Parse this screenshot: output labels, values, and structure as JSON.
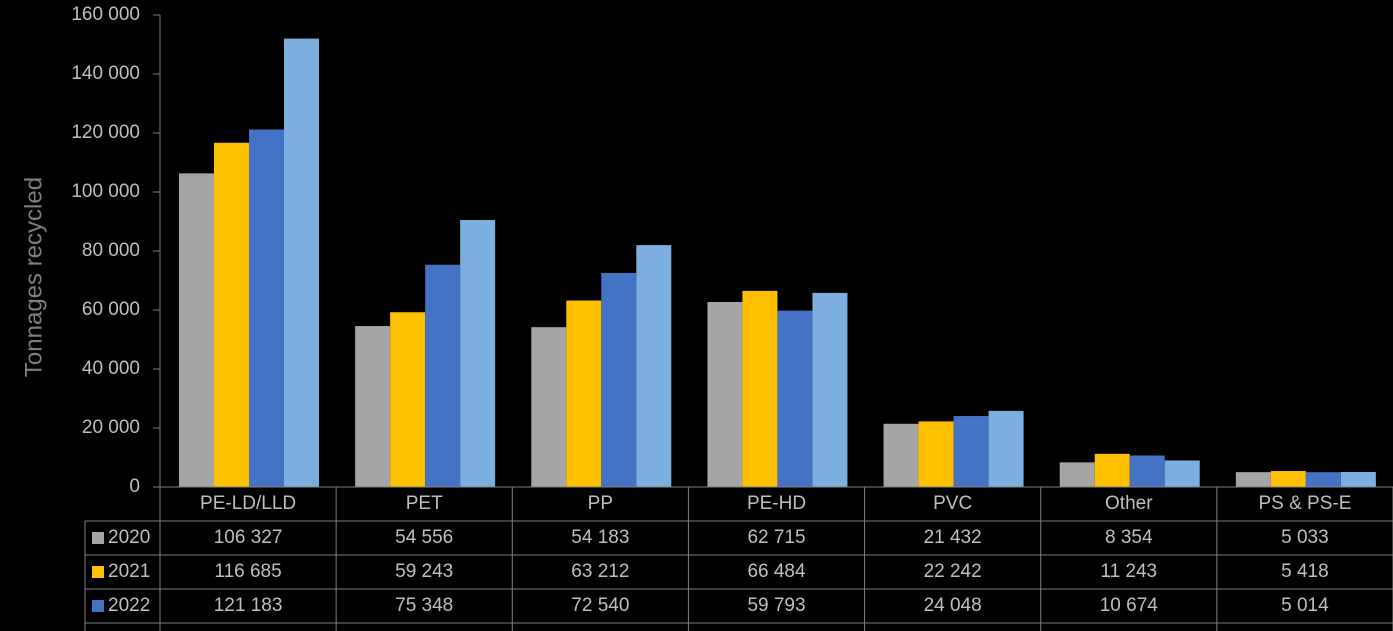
{
  "chart_data": {
    "type": "bar",
    "y_axis_label": "Tonnages recycled",
    "categories": [
      "PE-LD/LLD",
      "PET",
      "PP",
      "PE-HD",
      "PVC",
      "Other",
      "PS & PS-E"
    ],
    "series": [
      {
        "name": "2020",
        "color": "#a5a5a5",
        "values": [
          106327,
          54556,
          54183,
          62715,
          21432,
          8354,
          5033
        ],
        "value_labels": [
          "106 327",
          "54 556",
          "54 183",
          "62 715",
          "21 432",
          "8 354",
          "5 033"
        ]
      },
      {
        "name": "2021",
        "color": "#ffc000",
        "values": [
          116685,
          59243,
          63212,
          66484,
          22242,
          11243,
          5418
        ],
        "value_labels": [
          "116 685",
          "59 243",
          "63 212",
          "66 484",
          "22 242",
          "11 243",
          "5 418"
        ]
      },
      {
        "name": "2022",
        "color": "#4472c4",
        "values": [
          121183,
          75348,
          72540,
          59793,
          24048,
          10674,
          5014
        ],
        "value_labels": [
          "121 183",
          "75 348",
          "72 540",
          "59 793",
          "24 048",
          "10 674",
          "5 014"
        ]
      },
      {
        "color": "#7cafe0",
        "values": [
          152000,
          90500,
          82000,
          65800,
          25800,
          9000,
          5100
        ]
      }
    ],
    "ylim": [
      0,
      160000
    ],
    "yticks": [
      0,
      {
        "value": 20000,
        "label": "20 000"
      },
      {
        "value": 40000,
        "label": "40 000"
      },
      {
        "value": 60000,
        "label": "60 000"
      },
      {
        "value": 80000,
        "label": "80 000"
      },
      {
        "value": 100000,
        "label": "100 000"
      },
      {
        "value": 120000,
        "label": "120 000"
      },
      {
        "value": 140000,
        "label": "140 000"
      },
      {
        "value": 160000,
        "label": "160 000"
      }
    ]
  }
}
